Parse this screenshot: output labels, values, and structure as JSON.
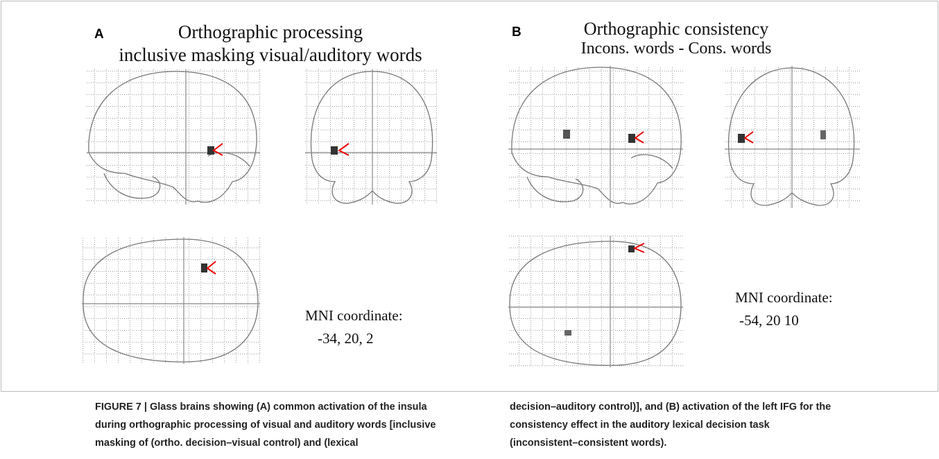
{
  "panels": [
    {
      "label": "A",
      "title": [
        "Orthographic processing",
        "inclusive masking visual/auditory words"
      ],
      "mni_label": "MNI coordinate:",
      "mni_value": "-34, 20, 2"
    },
    {
      "label": "B",
      "title": [
        "Orthographic consistency",
        "Incons. words - Cons. words"
      ],
      "mni_label": "MNI coordinate:",
      "mni_value": "-54, 20 10"
    }
  ],
  "caption": {
    "left": [
      "FIGURE 7 | Glass brains showing (A) common activation of the insula",
      "during orthographic processing of visual and auditory words [inclusive",
      "masking of (ortho. decision–visual control) and (lexical"
    ],
    "right": [
      "decision–auditory control)], and (B) activation of the left IFG for the",
      "consistency effect in the auditory lexical decision task",
      "(inconsistent–consistent words)."
    ]
  }
}
